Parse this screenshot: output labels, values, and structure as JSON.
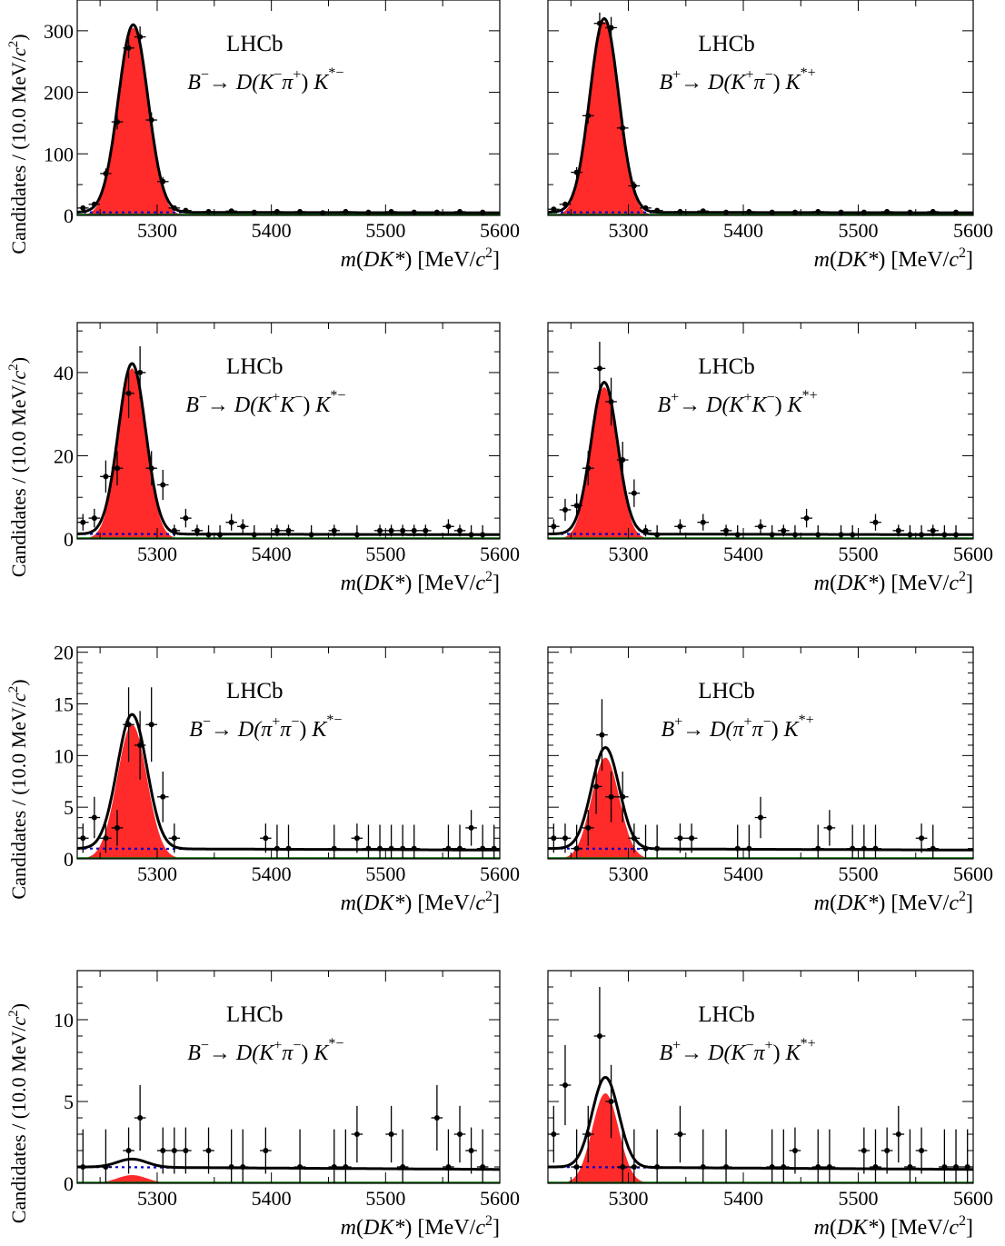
{
  "figure": {
    "experiment_label": "LHCb",
    "xlabel_parts": [
      "m",
      "(",
      "DK*",
      ") [MeV/",
      "c",
      "2",
      "]"
    ],
    "ylabel_parts": [
      "Candidates / (10.0 MeV/",
      "c",
      "2",
      ")"
    ],
    "colors": {
      "signal": "#ff2a2a",
      "fit": "#000000",
      "combinatorial": "#0000cc",
      "partreco": "#006400",
      "points": "#000000"
    }
  },
  "chart_data": [
    {
      "type": "scatter",
      "decay": {
        "parent": "B",
        "parent_charge": "−",
        "d_open": "D(",
        "d1": "K",
        "d1_charge": "−",
        "d2": "π",
        "d2_charge": "+",
        "d_close": ")",
        "kstar": "K",
        "kstar_sup": "*−"
      },
      "xlim": [
        5230,
        5600
      ],
      "ylim": [
        0,
        350
      ],
      "xticks": [
        5300,
        5400,
        5500,
        5600
      ],
      "yticks": [
        0,
        100,
        200,
        300
      ],
      "peak": {
        "mean": 5279,
        "sigma": 13,
        "amplitude": 305
      },
      "background": {
        "level": 5
      },
      "points": [
        {
          "x": 5235,
          "y": 12
        },
        {
          "x": 5245,
          "y": 18
        },
        {
          "x": 5255,
          "y": 68
        },
        {
          "x": 5265,
          "y": 152
        },
        {
          "x": 5275,
          "y": 272
        },
        {
          "x": 5285,
          "y": 290
        },
        {
          "x": 5295,
          "y": 155
        },
        {
          "x": 5305,
          "y": 55
        },
        {
          "x": 5315,
          "y": 12
        },
        {
          "x": 5325,
          "y": 8
        },
        {
          "x": 5345,
          "y": 6
        },
        {
          "x": 5365,
          "y": 7
        },
        {
          "x": 5385,
          "y": 5
        },
        {
          "x": 5405,
          "y": 6
        },
        {
          "x": 5425,
          "y": 6
        },
        {
          "x": 5445,
          "y": 4
        },
        {
          "x": 5465,
          "y": 6
        },
        {
          "x": 5485,
          "y": 5
        },
        {
          "x": 5505,
          "y": 6
        },
        {
          "x": 5525,
          "y": 5
        },
        {
          "x": 5545,
          "y": 5
        },
        {
          "x": 5565,
          "y": 6
        },
        {
          "x": 5585,
          "y": 5
        }
      ]
    },
    {
      "type": "scatter",
      "decay": {
        "parent": "B",
        "parent_charge": "+",
        "d_open": "D(",
        "d1": "K",
        "d1_charge": "+",
        "d2": "π",
        "d2_charge": "−",
        "d_close": ")",
        "kstar": "K",
        "kstar_sup": "*+"
      },
      "xlim": [
        5230,
        5600
      ],
      "ylim": [
        0,
        350
      ],
      "xticks": [
        5300,
        5400,
        5500,
        5600
      ],
      "yticks": [],
      "peak": {
        "mean": 5279,
        "sigma": 12.5,
        "amplitude": 315
      },
      "background": {
        "level": 5
      },
      "points": [
        {
          "x": 5235,
          "y": 10
        },
        {
          "x": 5245,
          "y": 18
        },
        {
          "x": 5255,
          "y": 70
        },
        {
          "x": 5265,
          "y": 162
        },
        {
          "x": 5275,
          "y": 312
        },
        {
          "x": 5285,
          "y": 305
        },
        {
          "x": 5295,
          "y": 142
        },
        {
          "x": 5305,
          "y": 48
        },
        {
          "x": 5315,
          "y": 12
        },
        {
          "x": 5325,
          "y": 8
        },
        {
          "x": 5345,
          "y": 6
        },
        {
          "x": 5365,
          "y": 7
        },
        {
          "x": 5385,
          "y": 5
        },
        {
          "x": 5405,
          "y": 6
        },
        {
          "x": 5425,
          "y": 5
        },
        {
          "x": 5445,
          "y": 5
        },
        {
          "x": 5465,
          "y": 6
        },
        {
          "x": 5485,
          "y": 5
        },
        {
          "x": 5505,
          "y": 5
        },
        {
          "x": 5525,
          "y": 6
        },
        {
          "x": 5545,
          "y": 5
        },
        {
          "x": 5565,
          "y": 6
        },
        {
          "x": 5585,
          "y": 5
        }
      ]
    },
    {
      "type": "scatter",
      "decay": {
        "parent": "B",
        "parent_charge": "−",
        "d_open": "D(",
        "d1": "K",
        "d1_charge": "+",
        "d2": "K",
        "d2_charge": "−",
        "d_close": ")",
        "kstar": "K",
        "kstar_sup": "*−"
      },
      "xlim": [
        5230,
        5600
      ],
      "ylim": [
        0,
        52
      ],
      "xticks": [
        5300,
        5400,
        5500,
        5600
      ],
      "yticks": [
        0,
        20,
        40
      ],
      "peak": {
        "mean": 5278,
        "sigma": 12,
        "amplitude": 41
      },
      "background": {
        "level": 1.2
      },
      "points": [
        {
          "x": 5235,
          "y": 4
        },
        {
          "x": 5245,
          "y": 5
        },
        {
          "x": 5255,
          "y": 15
        },
        {
          "x": 5265,
          "y": 17
        },
        {
          "x": 5275,
          "y": 35
        },
        {
          "x": 5285,
          "y": 40
        },
        {
          "x": 5295,
          "y": 17
        },
        {
          "x": 5305,
          "y": 13
        },
        {
          "x": 5315,
          "y": 2
        },
        {
          "x": 5325,
          "y": 5
        },
        {
          "x": 5335,
          "y": 2
        },
        {
          "x": 5345,
          "y": 1
        },
        {
          "x": 5355,
          "y": 1
        },
        {
          "x": 5365,
          "y": 4
        },
        {
          "x": 5375,
          "y": 3
        },
        {
          "x": 5385,
          "y": 1
        },
        {
          "x": 5405,
          "y": 2
        },
        {
          "x": 5415,
          "y": 2
        },
        {
          "x": 5435,
          "y": 1
        },
        {
          "x": 5455,
          "y": 2
        },
        {
          "x": 5475,
          "y": 1
        },
        {
          "x": 5495,
          "y": 2
        },
        {
          "x": 5505,
          "y": 2
        },
        {
          "x": 5515,
          "y": 2
        },
        {
          "x": 5525,
          "y": 2
        },
        {
          "x": 5535,
          "y": 2
        },
        {
          "x": 5555,
          "y": 3
        },
        {
          "x": 5565,
          "y": 2
        },
        {
          "x": 5575,
          "y": 1
        },
        {
          "x": 5585,
          "y": 1
        }
      ]
    },
    {
      "type": "scatter",
      "decay": {
        "parent": "B",
        "parent_charge": "+",
        "d_open": "D(",
        "d1": "K",
        "d1_charge": "+",
        "d2": "K",
        "d2_charge": "−",
        "d_close": ")",
        "kstar": "K",
        "kstar_sup": "*+"
      },
      "xlim": [
        5230,
        5600
      ],
      "ylim": [
        0,
        52
      ],
      "xticks": [
        5300,
        5400,
        5500,
        5600
      ],
      "yticks": [],
      "peak": {
        "mean": 5279,
        "sigma": 11.5,
        "amplitude": 36.5
      },
      "background": {
        "level": 1.2
      },
      "points": [
        {
          "x": 5235,
          "y": 3
        },
        {
          "x": 5245,
          "y": 7
        },
        {
          "x": 5255,
          "y": 8
        },
        {
          "x": 5265,
          "y": 17
        },
        {
          "x": 5275,
          "y": 41
        },
        {
          "x": 5285,
          "y": 33
        },
        {
          "x": 5295,
          "y": 19
        },
        {
          "x": 5305,
          "y": 11
        },
        {
          "x": 5315,
          "y": 2
        },
        {
          "x": 5325,
          "y": 1
        },
        {
          "x": 5345,
          "y": 3
        },
        {
          "x": 5365,
          "y": 4
        },
        {
          "x": 5385,
          "y": 2
        },
        {
          "x": 5395,
          "y": 1
        },
        {
          "x": 5415,
          "y": 3
        },
        {
          "x": 5425,
          "y": 1
        },
        {
          "x": 5435,
          "y": 2
        },
        {
          "x": 5445,
          "y": 1
        },
        {
          "x": 5455,
          "y": 5
        },
        {
          "x": 5465,
          "y": 1
        },
        {
          "x": 5485,
          "y": 1
        },
        {
          "x": 5495,
          "y": 1
        },
        {
          "x": 5515,
          "y": 4
        },
        {
          "x": 5535,
          "y": 2
        },
        {
          "x": 5545,
          "y": 1
        },
        {
          "x": 5555,
          "y": 1
        },
        {
          "x": 5565,
          "y": 2
        },
        {
          "x": 5575,
          "y": 1
        },
        {
          "x": 5585,
          "y": 1
        }
      ]
    },
    {
      "type": "scatter",
      "decay": {
        "parent": "B",
        "parent_charge": "−",
        "d_open": "D(",
        "d1": "π",
        "d1_charge": "+",
        "d2": "π",
        "d2_charge": "−",
        "d_close": ")",
        "kstar": "K",
        "kstar_sup": "*−"
      },
      "xlim": [
        5230,
        5600
      ],
      "ylim": [
        0,
        20.5
      ],
      "xticks": [
        5300,
        5400,
        5500,
        5600
      ],
      "yticks": [
        0,
        5,
        10,
        15,
        20
      ],
      "peak": {
        "mean": 5278,
        "sigma": 13,
        "amplitude": 13
      },
      "background": {
        "level": 1
      },
      "points": [
        {
          "x": 5235,
          "y": 2
        },
        {
          "x": 5245,
          "y": 4
        },
        {
          "x": 5255,
          "y": 2
        },
        {
          "x": 5265,
          "y": 3
        },
        {
          "x": 5275,
          "y": 13
        },
        {
          "x": 5285,
          "y": 11
        },
        {
          "x": 5295,
          "y": 13
        },
        {
          "x": 5305,
          "y": 6
        },
        {
          "x": 5315,
          "y": 2
        },
        {
          "x": 5395,
          "y": 2
        },
        {
          "x": 5405,
          "y": 1
        },
        {
          "x": 5415,
          "y": 1
        },
        {
          "x": 5455,
          "y": 1
        },
        {
          "x": 5475,
          "y": 2
        },
        {
          "x": 5485,
          "y": 1
        },
        {
          "x": 5495,
          "y": 1
        },
        {
          "x": 5505,
          "y": 1
        },
        {
          "x": 5515,
          "y": 1
        },
        {
          "x": 5525,
          "y": 1
        },
        {
          "x": 5555,
          "y": 1
        },
        {
          "x": 5565,
          "y": 1
        },
        {
          "x": 5575,
          "y": 3
        },
        {
          "x": 5585,
          "y": 1
        },
        {
          "x": 5595,
          "y": 1
        }
      ]
    },
    {
      "type": "scatter",
      "decay": {
        "parent": "B",
        "parent_charge": "+",
        "d_open": "D(",
        "d1": "π",
        "d1_charge": "+",
        "d2": "π",
        "d2_charge": "−",
        "d_close": ")",
        "kstar": "K",
        "kstar_sup": "*+"
      },
      "xlim": [
        5230,
        5600
      ],
      "ylim": [
        0,
        20.5
      ],
      "xticks": [
        5300,
        5400,
        5500,
        5600
      ],
      "yticks": [],
      "peak": {
        "mean": 5280,
        "sigma": 12,
        "amplitude": 9.8
      },
      "background": {
        "level": 1
      },
      "points": [
        {
          "x": 5235,
          "y": 2
        },
        {
          "x": 5245,
          "y": 2
        },
        {
          "x": 5255,
          "y": 1
        },
        {
          "x": 5265,
          "y": 3
        },
        {
          "x": 5272,
          "y": 7
        },
        {
          "x": 5277,
          "y": 12
        },
        {
          "x": 5285,
          "y": 6
        },
        {
          "x": 5295,
          "y": 6
        },
        {
          "x": 5305,
          "y": 2
        },
        {
          "x": 5315,
          "y": 1
        },
        {
          "x": 5325,
          "y": 1
        },
        {
          "x": 5345,
          "y": 2
        },
        {
          "x": 5355,
          "y": 2
        },
        {
          "x": 5395,
          "y": 1
        },
        {
          "x": 5405,
          "y": 1
        },
        {
          "x": 5415,
          "y": 4
        },
        {
          "x": 5465,
          "y": 1
        },
        {
          "x": 5475,
          "y": 3
        },
        {
          "x": 5495,
          "y": 1
        },
        {
          "x": 5505,
          "y": 1
        },
        {
          "x": 5515,
          "y": 1
        },
        {
          "x": 5555,
          "y": 2
        },
        {
          "x": 5565,
          "y": 1
        }
      ]
    },
    {
      "type": "scatter",
      "decay": {
        "parent": "B",
        "parent_charge": "−",
        "d_open": "D(",
        "d1": "K",
        "d1_charge": "+",
        "d2": "π",
        "d2_charge": "−",
        "d_close": ")",
        "kstar": "K",
        "kstar_sup": "*−"
      },
      "xlim": [
        5230,
        5600
      ],
      "ylim": [
        0,
        13
      ],
      "xticks": [
        5300,
        5400,
        5500,
        5600
      ],
      "yticks": [
        0,
        5,
        10
      ],
      "peak": {
        "mean": 5278,
        "sigma": 13,
        "amplitude": 0.5
      },
      "background": {
        "level": 1
      },
      "points": [
        {
          "x": 5235,
          "y": 1
        },
        {
          "x": 5255,
          "y": 1
        },
        {
          "x": 5275,
          "y": 2
        },
        {
          "x": 5285,
          "y": 4
        },
        {
          "x": 5305,
          "y": 2
        },
        {
          "x": 5315,
          "y": 2
        },
        {
          "x": 5325,
          "y": 2
        },
        {
          "x": 5345,
          "y": 2
        },
        {
          "x": 5365,
          "y": 1
        },
        {
          "x": 5375,
          "y": 1
        },
        {
          "x": 5395,
          "y": 2
        },
        {
          "x": 5425,
          "y": 1
        },
        {
          "x": 5455,
          "y": 1
        },
        {
          "x": 5465,
          "y": 1
        },
        {
          "x": 5475,
          "y": 3
        },
        {
          "x": 5505,
          "y": 3
        },
        {
          "x": 5515,
          "y": 1
        },
        {
          "x": 5545,
          "y": 4
        },
        {
          "x": 5555,
          "y": 1
        },
        {
          "x": 5565,
          "y": 3
        },
        {
          "x": 5575,
          "y": 2
        },
        {
          "x": 5585,
          "y": 1
        }
      ]
    },
    {
      "type": "scatter",
      "decay": {
        "parent": "B",
        "parent_charge": "+",
        "d_open": "D(",
        "d1": "K",
        "d1_charge": "−",
        "d2": "π",
        "d2_charge": "+",
        "d_close": ")",
        "kstar": "K",
        "kstar_sup": "*+"
      },
      "xlim": [
        5230,
        5600
      ],
      "ylim": [
        0,
        13
      ],
      "xticks": [
        5300,
        5400,
        5500,
        5600
      ],
      "yticks": [],
      "peak": {
        "mean": 5280,
        "sigma": 11.5,
        "amplitude": 5.5
      },
      "background": {
        "level": 1
      },
      "points": [
        {
          "x": 5235,
          "y": 3
        },
        {
          "x": 5245,
          "y": 6
        },
        {
          "x": 5255,
          "y": 1
        },
        {
          "x": 5265,
          "y": 3
        },
        {
          "x": 5275,
          "y": 9
        },
        {
          "x": 5285,
          "y": 5
        },
        {
          "x": 5295,
          "y": 1
        },
        {
          "x": 5305,
          "y": 1
        },
        {
          "x": 5325,
          "y": 1
        },
        {
          "x": 5345,
          "y": 3
        },
        {
          "x": 5365,
          "y": 1
        },
        {
          "x": 5385,
          "y": 1
        },
        {
          "x": 5425,
          "y": 1
        },
        {
          "x": 5435,
          "y": 1
        },
        {
          "x": 5445,
          "y": 2
        },
        {
          "x": 5465,
          "y": 1
        },
        {
          "x": 5475,
          "y": 1
        },
        {
          "x": 5505,
          "y": 2
        },
        {
          "x": 5515,
          "y": 1
        },
        {
          "x": 5525,
          "y": 2
        },
        {
          "x": 5535,
          "y": 3
        },
        {
          "x": 5545,
          "y": 1
        },
        {
          "x": 5555,
          "y": 2
        },
        {
          "x": 5575,
          "y": 1
        },
        {
          "x": 5585,
          "y": 1
        },
        {
          "x": 5595,
          "y": 1
        }
      ]
    }
  ]
}
